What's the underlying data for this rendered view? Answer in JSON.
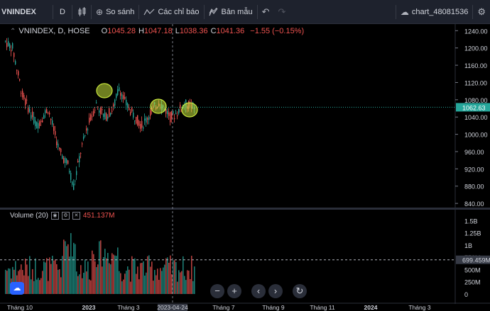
{
  "toolbar": {
    "symbol": "VNINDEX",
    "interval": "D",
    "compare_label": "So sánh",
    "indicators_label": "Các chỉ báo",
    "template_label": "Bản mẫu",
    "chart_name": "chart_48081536"
  },
  "legend": {
    "title": "VNINDEX, D, HOSE",
    "o_label": "O",
    "o_value": "1045.28",
    "h_label": "H",
    "h_value": "1047.18",
    "l_label": "L",
    "l_value": "1038.36",
    "c_label": "C",
    "c_value": "1041.36",
    "change": "−1.55 (−0.15%)"
  },
  "volume_legend": {
    "label": "Volume (20)",
    "value": "451.137M"
  },
  "chart_data": {
    "type": "candlestick",
    "price_axis": [
      "1240.00",
      "1200.00",
      "1160.00",
      "1120.00",
      "1080.00",
      "1040.00",
      "1000.00",
      "960.00",
      "920.00",
      "880.00",
      "840.00"
    ],
    "price_range": [
      832,
      1252
    ],
    "last_price_label": "1062.63",
    "last_price": 1062.63,
    "volume_axis": [
      "1.5B",
      "1.25B",
      "1B",
      "750M",
      "500M",
      "250M",
      "0"
    ],
    "volume_marker_label": "699.459M",
    "volume_marker": 699.459,
    "time_axis": [
      "Tháng 10",
      "2023",
      "Tháng 3",
      "2023-04-24",
      "Tháng 7",
      "Tháng 9",
      "Tháng 11",
      "2024",
      "Tháng 3"
    ],
    "crosshair_date": "2023-04-24",
    "colors": {
      "up": "#26a69a",
      "down": "#ef5350",
      "highlight": "#c8e63c"
    }
  },
  "nav": {
    "zoom_out": "−",
    "zoom_in": "+",
    "scroll_left": "‹",
    "scroll_right": "›",
    "reset": "↻"
  }
}
